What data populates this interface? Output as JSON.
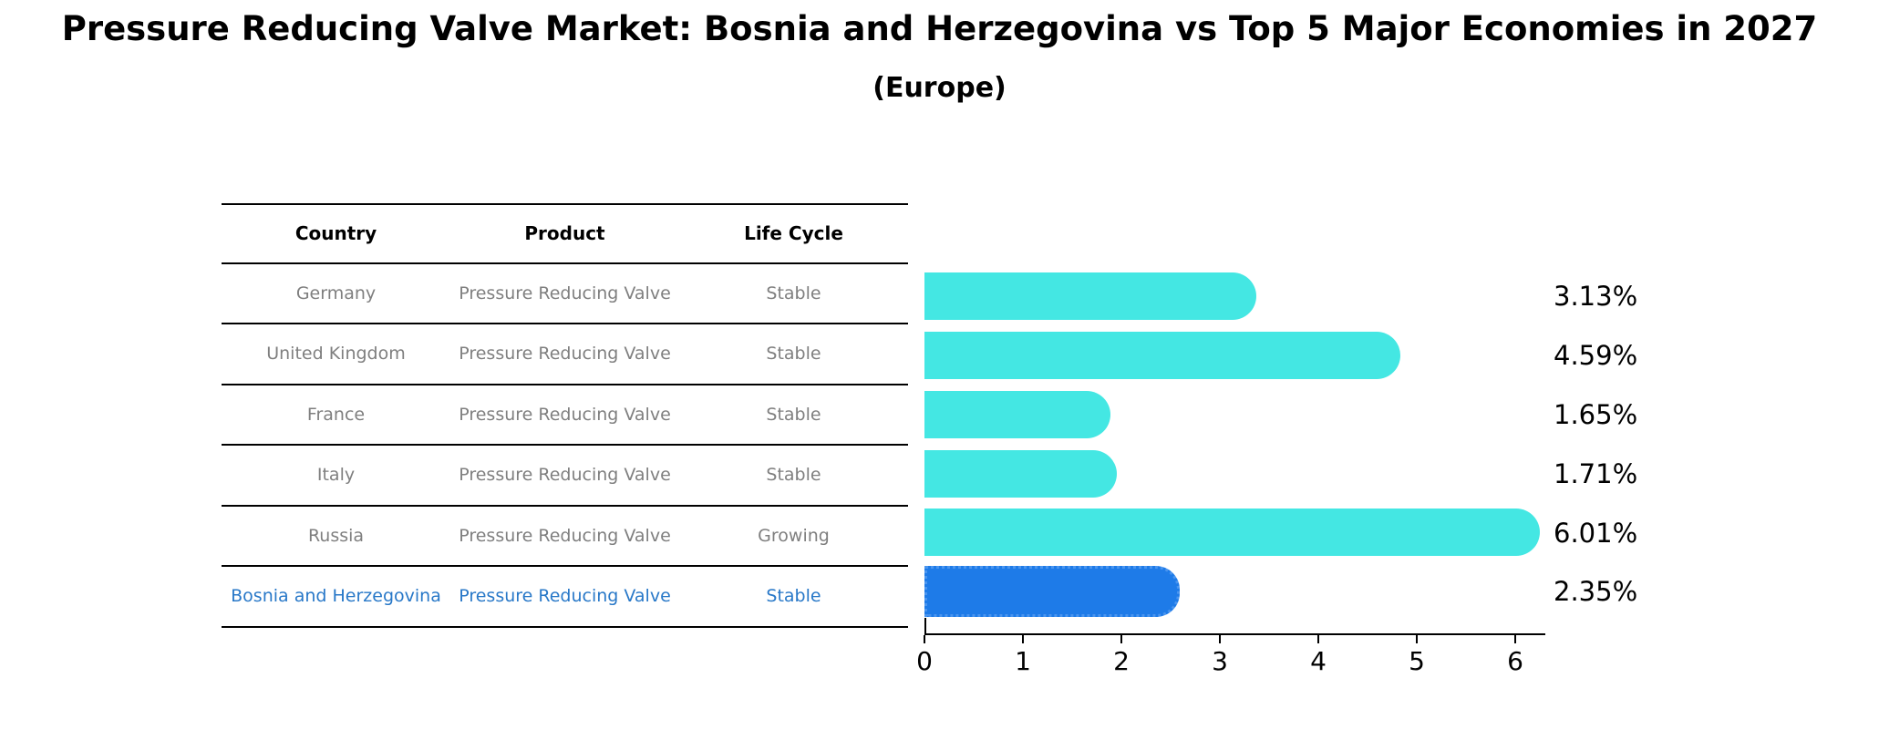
{
  "title": "Pressure Reducing Valve Market: Bosnia and Herzegovina vs Top 5 Major Economies in 2027",
  "subtitle": "(Europe)",
  "table": {
    "headers": {
      "country": "Country",
      "product": "Product",
      "life_cycle": "Life Cycle"
    },
    "rows": [
      {
        "country": "Germany",
        "product": "Pressure Reducing Valve",
        "life_cycle": "Stable"
      },
      {
        "country": "United Kingdom",
        "product": "Pressure Reducing Valve",
        "life_cycle": "Stable"
      },
      {
        "country": "France",
        "product": "Pressure Reducing Valve",
        "life_cycle": "Stable"
      },
      {
        "country": "Italy",
        "product": "Pressure Reducing Valve",
        "life_cycle": "Stable"
      },
      {
        "country": "Russia",
        "product": "Pressure Reducing Valve",
        "life_cycle": "Growing"
      },
      {
        "country": "Bosnia and Herzegovina",
        "product": "Pressure Reducing Valve",
        "life_cycle": "Stable"
      }
    ]
  },
  "chart_data": {
    "type": "bar",
    "orientation": "horizontal",
    "categories": [
      "Germany",
      "United Kingdom",
      "France",
      "Italy",
      "Russia",
      "Bosnia and Herzegovina"
    ],
    "values": [
      3.13,
      4.59,
      1.65,
      1.71,
      6.01,
      2.35
    ],
    "value_labels": [
      "3.13%",
      "4.59%",
      "1.65%",
      "1.71%",
      "6.01%",
      "2.35%"
    ],
    "highlight_index": 5,
    "x_ticks": [
      "0",
      "1",
      "2",
      "3",
      "4",
      "5",
      "6"
    ],
    "xlim": [
      0,
      6.3
    ],
    "grid": "off",
    "legend": "none",
    "bar_color": "#44e7e3",
    "highlight_bar_color": "#1e7be8",
    "highlight_text_color": "#2878c8",
    "table_text_color": "#7f7f7f"
  }
}
